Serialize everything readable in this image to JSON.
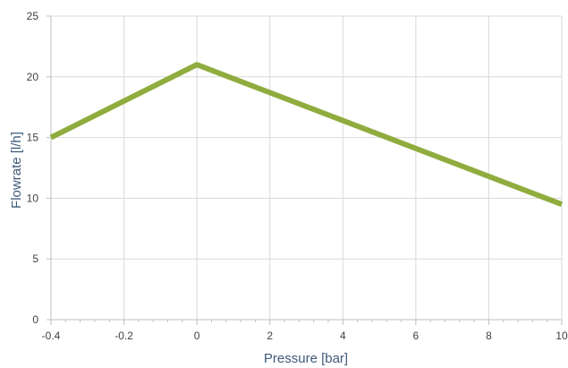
{
  "chart_data": {
    "type": "line",
    "title": "",
    "xlabel": "Pressure [bar]",
    "ylabel": "Flowrate [l/h]",
    "x_categories": [
      "-0.4",
      "-0.2",
      "0",
      "2",
      "4",
      "6",
      "8",
      "10"
    ],
    "y_ticks": [
      0,
      5,
      10,
      15,
      20,
      25
    ],
    "ylim": [
      0,
      25
    ],
    "grid": true,
    "legend": "none",
    "series": [
      {
        "color": "#8fac3e",
        "points": [
          {
            "x": "-0.4",
            "y": 15
          },
          {
            "x": "0",
            "y": 21
          },
          {
            "x": "10",
            "y": 9.5
          }
        ]
      }
    ],
    "colors": {
      "grid": "#d9d9d9",
      "axis": "#bfbfbf",
      "tick_text": "#404040",
      "axis_title": "#3f5a7a"
    }
  }
}
